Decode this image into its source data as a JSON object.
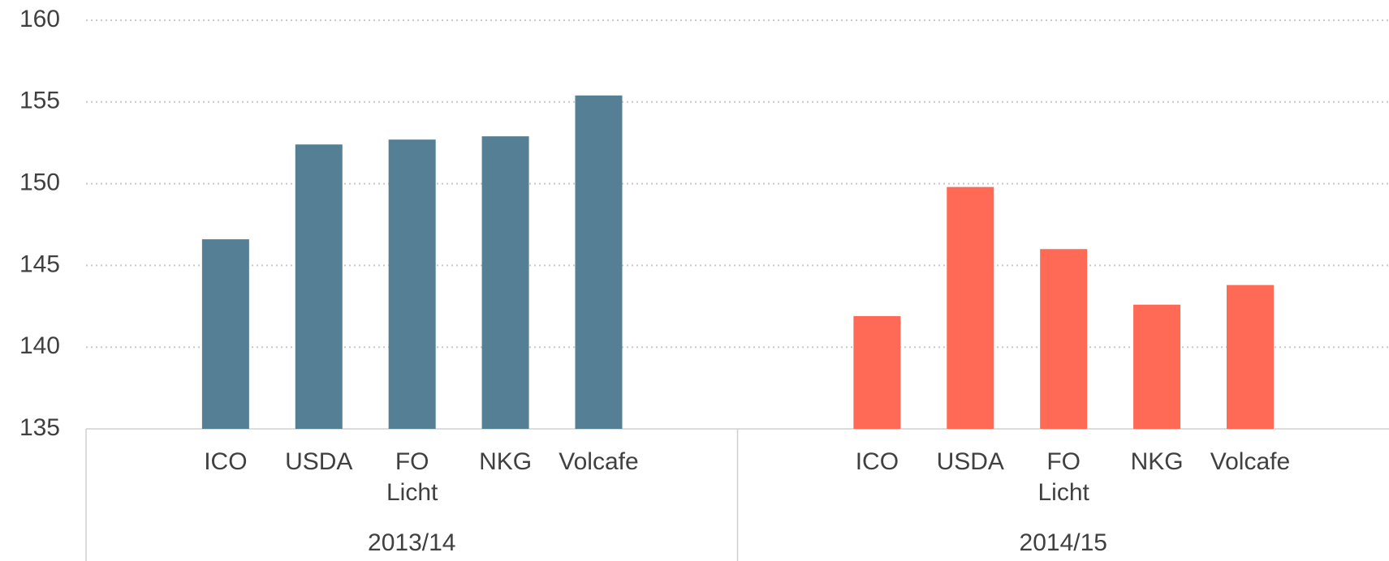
{
  "chart_data": {
    "type": "bar",
    "categories": [
      "ICO",
      "USDA",
      "FO Licht",
      "NKG",
      "Volcafe"
    ],
    "series": [
      {
        "name": "2013/14",
        "color": "#557f94",
        "values": [
          146.6,
          152.4,
          152.7,
          152.9,
          155.4
        ]
      },
      {
        "name": "2014/15",
        "color": "#ff6a57",
        "values": [
          141.9,
          149.8,
          146.0,
          142.6,
          143.8
        ]
      }
    ],
    "ylim": [
      135,
      160
    ],
    "yticks": [
      135,
      140,
      145,
      150,
      155,
      160
    ],
    "grid": true
  }
}
